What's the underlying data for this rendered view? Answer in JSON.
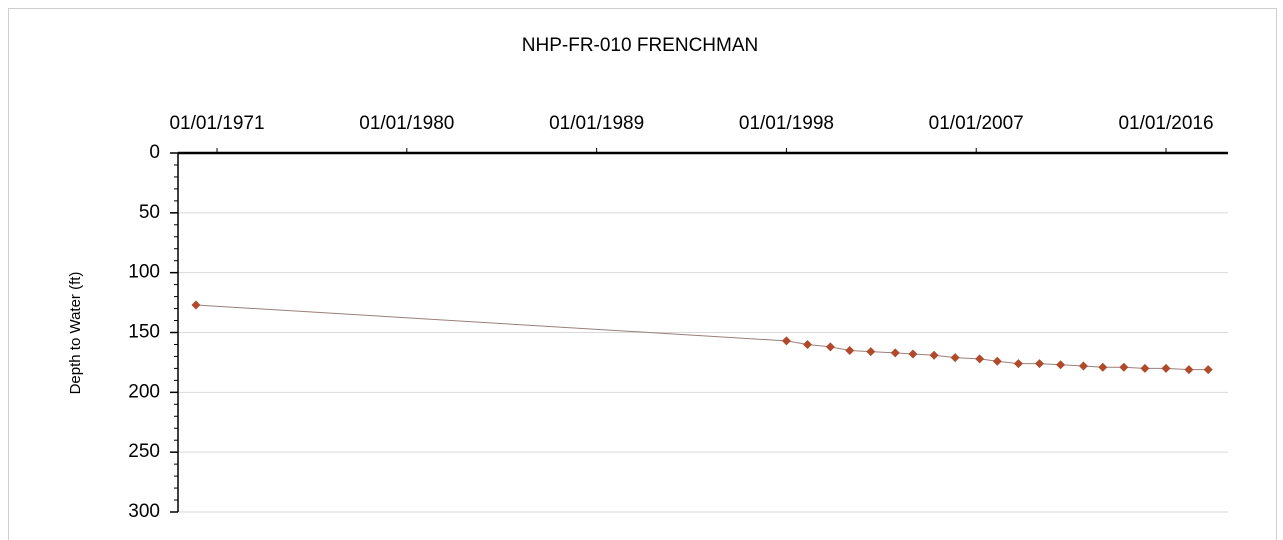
{
  "chart_data": {
    "type": "line",
    "title": "NHP-FR-010 FRENCHMAN",
    "y_label": "Depth to Water (ft)",
    "x": [
      "1970-01-01",
      "1998-01-01",
      "1999-01-01",
      "2000-02-01",
      "2001-01-01",
      "2002-01-01",
      "2003-03-01",
      "2004-01-01",
      "2005-01-01",
      "2006-01-01",
      "2007-03-01",
      "2008-01-01",
      "2009-01-01",
      "2010-01-01",
      "2011-01-01",
      "2012-02-01",
      "2013-01-01",
      "2014-01-01",
      "2015-01-01",
      "2016-01-01",
      "2017-02-01",
      "2018-01-01"
    ],
    "series": [
      {
        "name": "Depth to Water",
        "color": "#b04a2a",
        "line_color": "#9a7f7a",
        "values": [
          127,
          157,
          160,
          162,
          165,
          166,
          167,
          168,
          169,
          171,
          172,
          174,
          176,
          176,
          177,
          178,
          179,
          179,
          180,
          180,
          181,
          181
        ]
      }
    ],
    "xlim": [
      "1969-02-24",
      "2018-12-10"
    ],
    "xticks": [
      {
        "value": "1971-01-01",
        "label": "01/01/1971"
      },
      {
        "value": "1980-01-01",
        "label": "01/01/1980"
      },
      {
        "value": "1989-01-01",
        "label": "01/01/1989"
      },
      {
        "value": "1998-01-01",
        "label": "01/01/1998"
      },
      {
        "value": "2007-01-01",
        "label": "01/01/2007"
      },
      {
        "value": "2016-01-01",
        "label": "01/01/2016"
      }
    ],
    "ylim": [
      0,
      300
    ],
    "yticks": [
      0,
      50,
      100,
      150,
      200,
      250,
      300
    ],
    "y_inverted": true,
    "grid": true
  }
}
